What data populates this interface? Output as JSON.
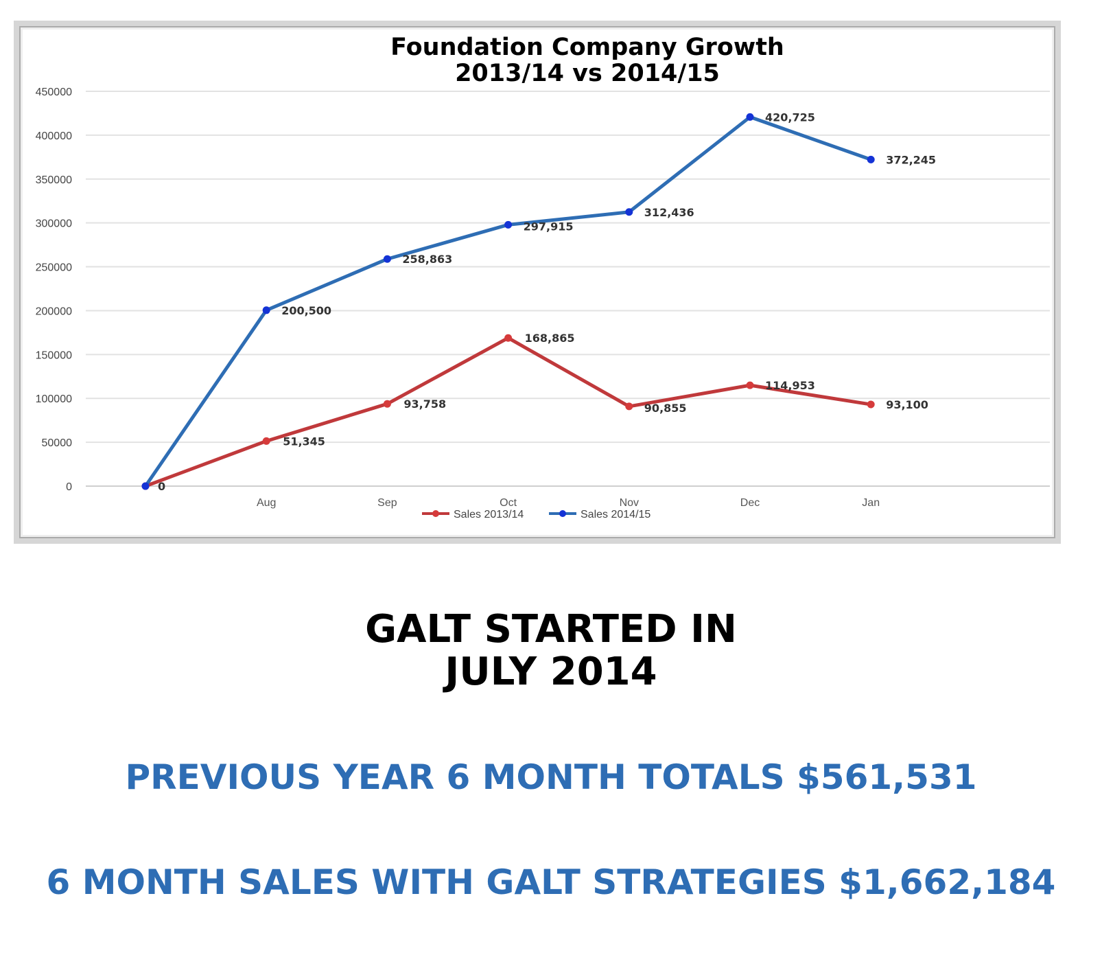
{
  "chart_data": {
    "type": "line",
    "title": "Foundation Company Growth",
    "subtitle": "2013/14 vs 2014/15",
    "categories": [
      "",
      "Aug",
      "Sep",
      "Oct",
      "Nov",
      "Dec",
      "Jan"
    ],
    "series": [
      {
        "name": "Sales 2013/14",
        "color": "#c0393b",
        "marker_color": "#d63b3b",
        "values": [
          0,
          51345,
          93758,
          168865,
          90855,
          114953,
          93100
        ],
        "labels": [
          "",
          "51,345",
          "93,758",
          "168,865",
          "90,855",
          "114,953",
          "93,100"
        ]
      },
      {
        "name": "Sales 2014/15",
        "color": "#2e6db4",
        "marker_color": "#1433d6",
        "values": [
          0,
          200500,
          258863,
          297915,
          312436,
          420725,
          372245
        ],
        "labels": [
          "0",
          "200,500",
          "258,863",
          "297,915",
          "312,436",
          "420,725",
          "372,245"
        ]
      }
    ],
    "yticks": [
      "0",
      "50000",
      "100000",
      "150000",
      "200000",
      "250000",
      "300000",
      "350000",
      "400000",
      "450000"
    ],
    "ylim": [
      0,
      450000
    ],
    "grid": true,
    "legend": "bottom-center"
  },
  "headline": {
    "line1": "GALT STARTED IN",
    "line2": "JULY 2014"
  },
  "previous_year_total": "PREVIOUS YEAR 6 MONTH TOTALS $561,531",
  "galt_sales_total": "6 MONTH SALES WITH GALT STRATEGIES $1,662,184"
}
